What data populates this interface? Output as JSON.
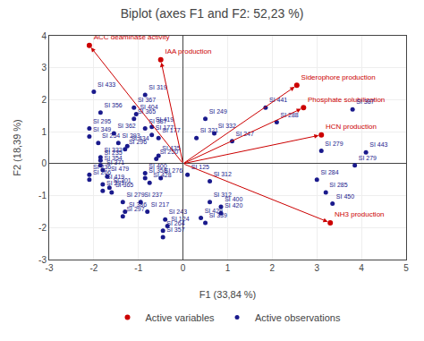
{
  "chart_data": {
    "type": "biplot",
    "title": "Biplot (axes F1 and F2: 52,23 %)",
    "xlabel": "F1 (33,84 %)",
    "ylabel": "F2 (18,39 %)",
    "xlim": [
      -3,
      5
    ],
    "ylim": [
      -3,
      4
    ],
    "xticks": [
      -3,
      -2,
      -1,
      0,
      1,
      2,
      3,
      4,
      5
    ],
    "yticks": [
      -3,
      -2,
      -1,
      0,
      1,
      2,
      3,
      4
    ],
    "grid": true,
    "legend": "bottom",
    "series": [
      {
        "name": "Active variables",
        "type": "arrow",
        "color": "#cc0000",
        "marker": "circle",
        "x": [
          -2.1,
          -0.5,
          2.55,
          2.7,
          3.1,
          3.3
        ],
        "values": [
          3.7,
          3.25,
          2.45,
          1.75,
          0.9,
          -1.85
        ],
        "labels": [
          "ACC deaminase activity",
          "IAA production",
          "Siderophore production",
          "Phosphate solubilization",
          "HCN production",
          "NH3 production"
        ]
      },
      {
        "name": "Active observations",
        "type": "scatter",
        "color": "#1a1a8c",
        "marker": "circle",
        "x": [
          -2.0,
          -1.85,
          -1.1,
          -1.05,
          -1.1,
          -2.1,
          -1.55,
          -2.1,
          -1.9,
          -1.45,
          -1.25,
          -1.3,
          -1.85,
          -1.85,
          -1.85,
          -1.8,
          -2.1,
          -2.1,
          -1.7,
          -1.8,
          -1.65,
          -1.8,
          -1.6,
          -1.35,
          -1.3,
          -1.35,
          -0.85,
          -0.85,
          -0.7,
          -0.7,
          -0.55,
          -0.55,
          -0.6,
          -0.85,
          -0.85,
          -0.75,
          -0.5,
          -0.95,
          -0.8,
          -0.4,
          -0.35,
          -0.45,
          -0.45,
          0.5,
          0.3,
          0.7,
          0.1,
          0.6,
          0.6,
          0.85,
          0.85,
          0.4,
          0.5,
          1.1,
          1.85,
          2.1,
          3.8,
          3.1,
          4.1,
          3.0,
          3.2,
          3.35,
          3.85
        ],
        "values": [
          2.25,
          1.6,
          1.75,
          1.55,
          1.4,
          1.1,
          0.95,
          0.85,
          0.65,
          0.65,
          0.55,
          0.45,
          0.2,
          0.1,
          -0.05,
          -0.2,
          -0.35,
          -0.5,
          -0.4,
          -0.65,
          -0.75,
          -0.85,
          -0.9,
          -1.2,
          -1.5,
          -1.65,
          2.15,
          1.1,
          1.15,
          0.9,
          0.8,
          0.25,
          0.15,
          -0.3,
          -0.45,
          -0.6,
          -0.45,
          -1.2,
          -1.5,
          -1.75,
          -1.95,
          -2.1,
          -2.3,
          1.4,
          0.8,
          0.95,
          -0.35,
          -0.55,
          -1.2,
          -1.35,
          -1.55,
          -1.7,
          -1.85,
          0.7,
          1.75,
          1.3,
          1.7,
          0.4,
          0.35,
          -0.5,
          -0.9,
          -1.25,
          -0.05
        ],
        "labels": [
          "SI 433",
          "SI 356",
          "SI 367",
          "SI 404",
          "SI 365",
          "SI 295",
          "SI 362",
          "SI 349",
          "SI 254",
          "SI 293",
          "SI 434",
          "SI 296",
          "SI 333",
          "SI 235",
          "SI 354",
          "SI 371",
          "SI 236",
          "SI 266",
          "SI 479",
          "SI 419",
          "SI 301",
          "SI 271",
          "SI 365",
          "SI 279",
          "SI 386",
          "SI 297",
          "SI 319",
          "SI 387",
          "SI 419",
          "SI 177",
          "SI 177",
          "SI 435",
          "SI 250",
          "SI 400",
          "SI 358",
          "SI 428",
          "SI 276",
          "SI 237",
          "SI 217",
          "SI 243",
          "SI 124",
          "SI 264",
          "SI 357",
          "SI 249",
          "SI 321",
          "SI 332",
          "SI 125",
          "SI 312",
          "SI 312",
          "SI 400",
          "SI 420",
          "SI 429",
          "SI 339",
          "SI 247",
          "SI 441",
          "SI 288",
          "SI 387",
          "SI 279",
          "SI 443",
          "SI 284",
          "SI 285",
          "SI 450",
          "SI 279"
        ]
      }
    ]
  }
}
